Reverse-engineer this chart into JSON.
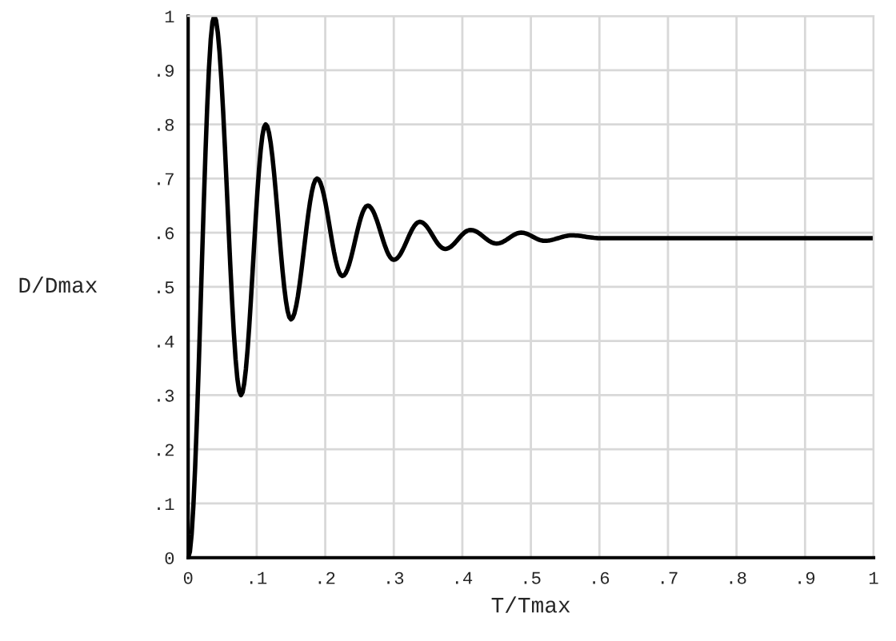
{
  "chart_data": {
    "type": "line",
    "xlabel": "T/Tmax",
    "ylabel": "D/Dmax",
    "x": [
      0,
      0.038,
      0.077,
      0.113,
      0.15,
      0.188,
      0.225,
      0.262,
      0.3,
      0.338,
      0.375,
      0.412,
      0.45,
      0.486,
      0.52,
      0.56,
      0.6,
      0.7,
      0.8,
      0.9,
      1
    ],
    "series": [
      {
        "color": "#000000",
        "values": [
          0,
          1.0,
          0.3,
          0.8,
          0.44,
          0.7,
          0.52,
          0.65,
          0.55,
          0.62,
          0.57,
          0.605,
          0.58,
          0.6,
          0.585,
          0.595,
          0.59,
          0.59,
          0.59,
          0.59,
          0.59
        ]
      }
    ],
    "xlim": [
      0,
      1
    ],
    "ylim": [
      0,
      1
    ],
    "xticks": [
      0,
      {
        "value": 0.1,
        "label": ".1"
      },
      {
        "value": 0.2,
        "label": ".2"
      },
      {
        "value": 0.3,
        "label": ".3"
      },
      {
        "value": 0.4,
        "label": ".4"
      },
      {
        "value": 0.5,
        "label": ".5"
      },
      {
        "value": 0.6,
        "label": ".6"
      },
      {
        "value": 0.7,
        "label": ".7"
      },
      {
        "value": 0.8,
        "label": ".8"
      },
      {
        "value": 0.9,
        "label": ".9"
      },
      1
    ],
    "yticks": [
      0,
      {
        "value": 0.1,
        "label": ".1"
      },
      {
        "value": 0.2,
        "label": ".2"
      },
      {
        "value": 0.3,
        "label": ".3"
      },
      {
        "value": 0.4,
        "label": ".4"
      },
      {
        "value": 0.5,
        "label": ".5"
      },
      {
        "value": 0.6,
        "label": ".6"
      },
      {
        "value": 0.7,
        "label": ".7"
      },
      {
        "value": 0.8,
        "label": ".8"
      },
      {
        "value": 0.9,
        "label": ".9"
      },
      1
    ],
    "grid": true,
    "legend": false,
    "marker": "none",
    "line_style": "solid"
  }
}
